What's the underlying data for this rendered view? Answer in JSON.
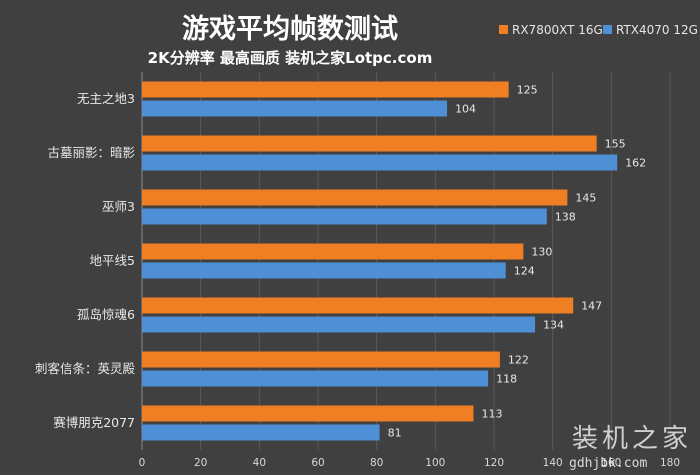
{
  "chart_data": {
    "type": "bar",
    "orientation": "horizontal",
    "title": "游戏平均帧数测试",
    "subtitle": "2K分辨率 最高画质 装机之家Lotpc.com",
    "categories": [
      "无主之地3",
      "古墓丽影：暗影",
      "巫师3",
      "地平线5",
      "孤岛惊魂6",
      "刺客信条：英灵殿",
      "赛博朋克2077"
    ],
    "series": [
      {
        "name": "RX7800XT 16G",
        "color": "#f07f24",
        "values": [
          125,
          155,
          145,
          130,
          147,
          122,
          113
        ]
      },
      {
        "name": "RTX4070 12G",
        "color": "#4f8fd6",
        "values": [
          104,
          162,
          138,
          124,
          134,
          118,
          81
        ]
      }
    ],
    "xlim": [
      0,
      180
    ],
    "xticks": [
      0,
      20,
      40,
      60,
      80,
      100,
      120,
      140,
      160,
      180
    ],
    "grid": true,
    "legend": "top-right"
  },
  "watermark": {
    "text": "装机之家",
    "url": "gdhjbk.com"
  }
}
